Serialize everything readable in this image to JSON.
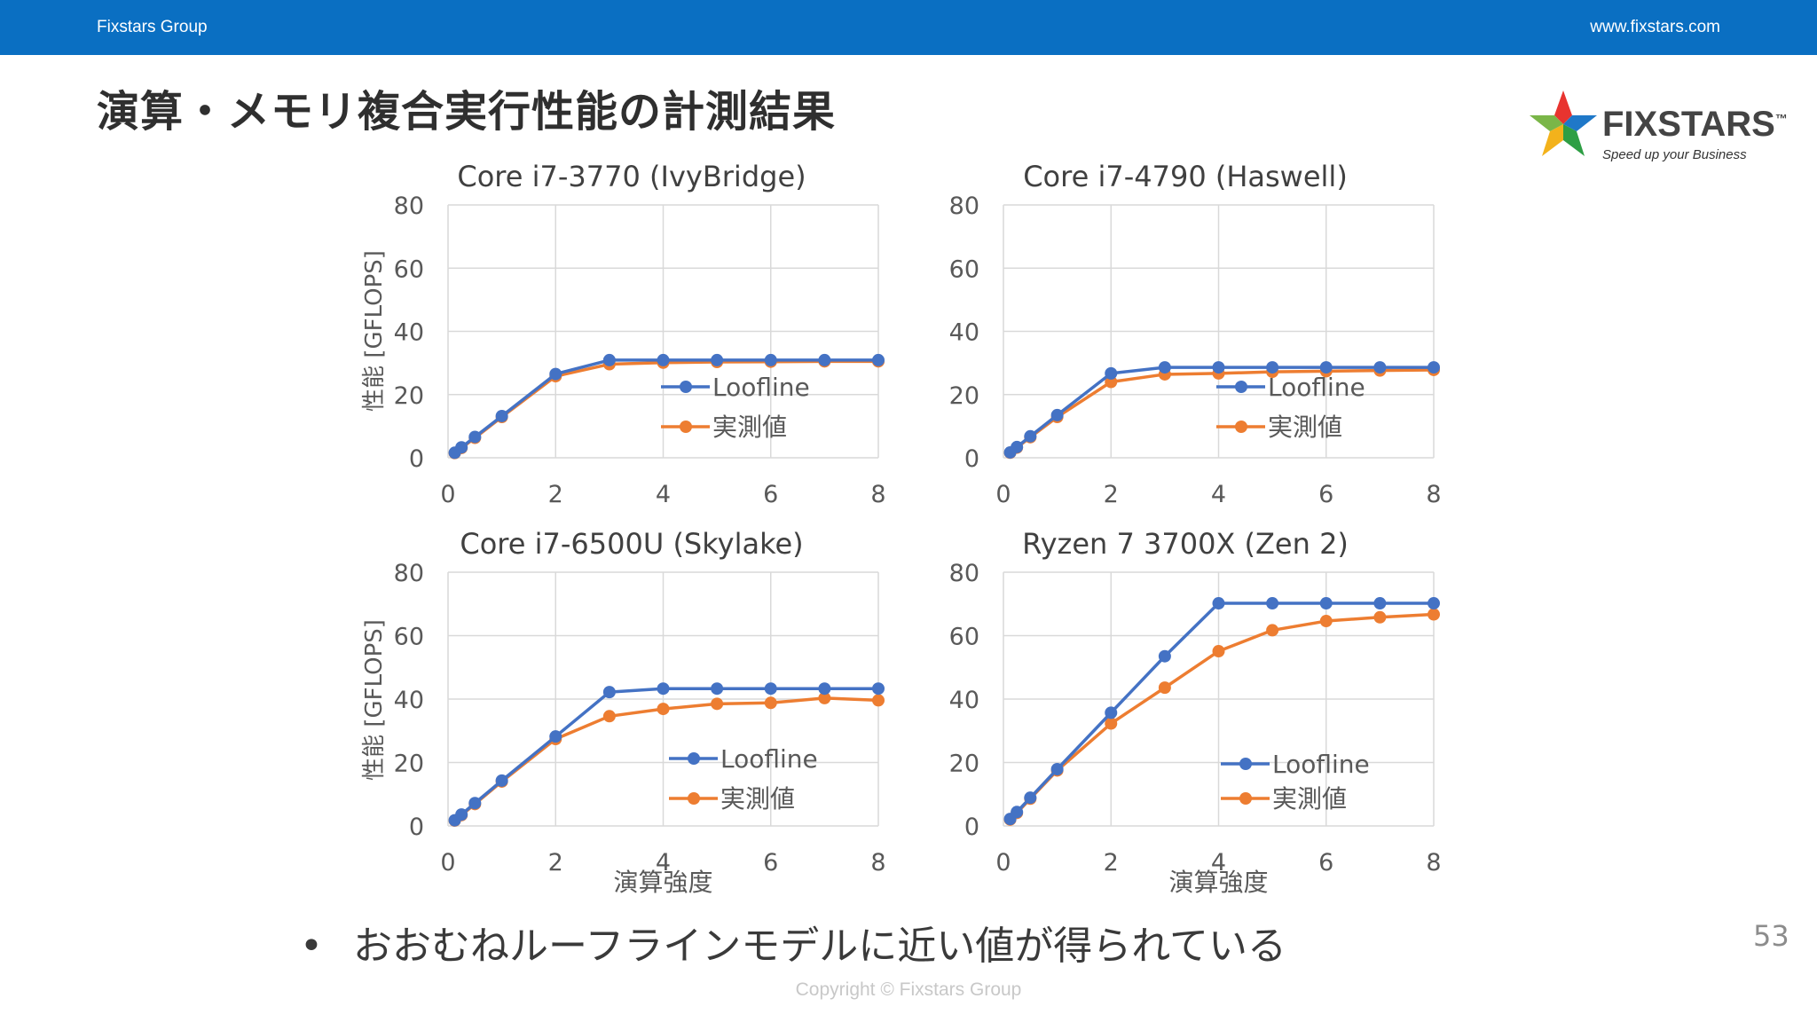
{
  "header": {
    "left_text": "Fixstars Group",
    "right_text": "www.fixstars.com",
    "bar_color": "#0a6fc2"
  },
  "slide": {
    "title": "演算・メモリ複合実行性能の計測結果",
    "bullet": "おおむねルーフラインモデルに近い値が得られている",
    "page_number": "53",
    "copyright": "Copyright © Fixstars Group"
  },
  "logo": {
    "word": "FIXSTARS",
    "tagline": "Speed up your Business",
    "trademark": "™"
  },
  "colors": {
    "roofline": "#4472c4",
    "measured": "#ed7d31",
    "grid": "#d9d9d9",
    "axis_text": "#595959",
    "title_text": "#404040"
  },
  "chart_data": [
    {
      "type": "line",
      "title": "Core i7-3770 (IvyBridge)",
      "ylabel": "性能 [GFLOPS]",
      "xlabel": "",
      "xlim": [
        0,
        8
      ],
      "ylim": [
        0,
        80
      ],
      "x_ticks": [
        "0",
        "2",
        "4",
        "6",
        "8"
      ],
      "y_ticks": [
        "0",
        "20",
        "40",
        "60",
        "80"
      ],
      "grid": true,
      "legend_position": "bottom-right",
      "x": [
        0.125,
        0.25,
        0.5,
        1,
        2,
        3,
        4,
        5,
        6,
        7,
        8
      ],
      "series": [
        {
          "name": "Loofline",
          "values": [
            1.6,
            3.3,
            6.6,
            13.2,
            26.5,
            30.9,
            30.9,
            30.9,
            30.9,
            30.9,
            30.9
          ]
        },
        {
          "name": "実測値",
          "values": [
            1.5,
            3.1,
            6.3,
            12.9,
            25.8,
            29.6,
            30.1,
            30.3,
            30.4,
            30.5,
            30.5
          ]
        }
      ]
    },
    {
      "type": "line",
      "title": "Core i7-4790 (Haswell)",
      "ylabel": "",
      "xlabel": "",
      "xlim": [
        0,
        8
      ],
      "ylim": [
        0,
        80
      ],
      "x_ticks": [
        "0",
        "2",
        "4",
        "6",
        "8"
      ],
      "y_ticks": [
        "0",
        "20",
        "40",
        "60",
        "80"
      ],
      "grid": true,
      "legend_position": "bottom-right",
      "x": [
        0.125,
        0.25,
        0.5,
        1,
        2,
        3,
        4,
        5,
        6,
        7,
        8
      ],
      "series": [
        {
          "name": "Loofline",
          "values": [
            1.7,
            3.4,
            6.8,
            13.5,
            26.7,
            28.6,
            28.6,
            28.6,
            28.6,
            28.6,
            28.6
          ]
        },
        {
          "name": "実測値",
          "values": [
            1.6,
            3.2,
            6.5,
            12.9,
            24.0,
            26.4,
            26.7,
            27.2,
            27.4,
            27.6,
            27.8
          ]
        }
      ]
    },
    {
      "type": "line",
      "title": "Core i7-6500U (Skylake)",
      "ylabel": "性能 [GFLOPS]",
      "xlabel": "演算強度",
      "xlim": [
        0,
        8
      ],
      "ylim": [
        0,
        80
      ],
      "x_ticks": [
        "0",
        "2",
        "4",
        "6",
        "8"
      ],
      "y_ticks": [
        "0",
        "20",
        "40",
        "60",
        "80"
      ],
      "grid": true,
      "legend_position": "bottom-right",
      "x": [
        0.125,
        0.25,
        0.5,
        1,
        2,
        3,
        4,
        5,
        6,
        7,
        8
      ],
      "series": [
        {
          "name": "Loofline",
          "values": [
            1.8,
            3.6,
            7.2,
            14.3,
            28.2,
            42.2,
            43.3,
            43.3,
            43.3,
            43.3,
            43.3
          ]
        },
        {
          "name": "実測値",
          "values": [
            1.7,
            3.4,
            6.9,
            14.0,
            27.4,
            34.6,
            36.9,
            38.5,
            38.8,
            40.3,
            39.6
          ]
        }
      ]
    },
    {
      "type": "line",
      "title": "Ryzen 7 3700X (Zen 2)",
      "ylabel": "",
      "xlabel": "演算強度",
      "xlim": [
        0,
        8
      ],
      "ylim": [
        0,
        80
      ],
      "x_ticks": [
        "0",
        "2",
        "4",
        "6",
        "8"
      ],
      "y_ticks": [
        "0",
        "20",
        "40",
        "60",
        "80"
      ],
      "grid": true,
      "legend_position": "bottom-right",
      "x": [
        0.125,
        0.25,
        0.5,
        1,
        2,
        3,
        4,
        5,
        6,
        7,
        8
      ],
      "series": [
        {
          "name": "Loofline",
          "values": [
            2.2,
            4.4,
            8.9,
            17.9,
            35.7,
            53.5,
            70.2,
            70.2,
            70.2,
            70.2,
            70.2
          ]
        },
        {
          "name": "実測値",
          "values": [
            2.0,
            4.1,
            8.6,
            17.5,
            32.3,
            43.6,
            55.1,
            61.7,
            64.6,
            65.8,
            66.7
          ]
        }
      ]
    }
  ]
}
